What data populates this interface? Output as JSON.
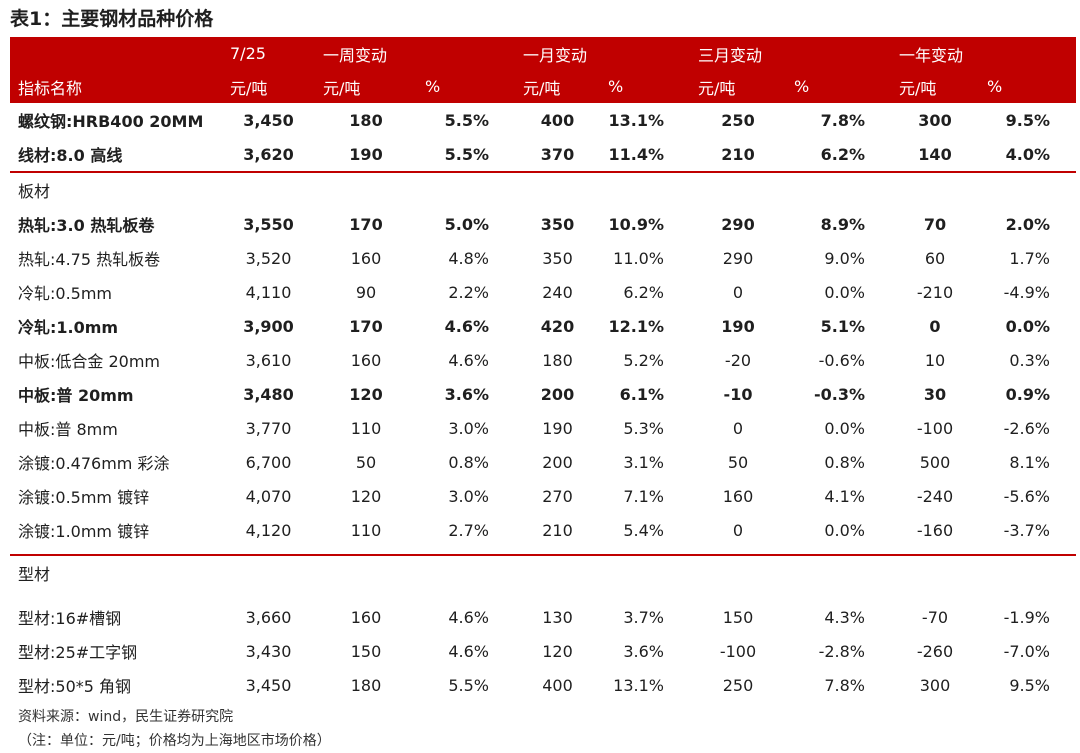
{
  "title": "表1：主要钢材品种价格",
  "header": {
    "row1": [
      "",
      "7/25",
      "一周变动",
      "",
      "一月变动",
      "",
      "三月变动",
      "",
      "一年变动",
      ""
    ],
    "row2": [
      "指标名称",
      "元/吨",
      "元/吨",
      "%",
      "元/吨",
      "%",
      "元/吨",
      "%",
      "元/吨",
      "%"
    ]
  },
  "rows_top": [
    {
      "name": "螺纹钢:HRB400 20MM",
      "bold": true,
      "v": [
        "3,450",
        "180",
        "5.5%",
        "400",
        "13.1%",
        "250",
        "7.8%",
        "300",
        "9.5%"
      ]
    },
    {
      "name": "线材:8.0 高线",
      "bold": true,
      "v": [
        "3,620",
        "190",
        "5.5%",
        "370",
        "11.4%",
        "210",
        "6.2%",
        "140",
        "4.0%"
      ]
    }
  ],
  "section_plate": "板材",
  "rows_plate": [
    {
      "name": "热轧:3.0 热轧板卷",
      "bold": true,
      "v": [
        "3,550",
        "170",
        "5.0%",
        "350",
        "10.9%",
        "290",
        "8.9%",
        "70",
        "2.0%"
      ]
    },
    {
      "name": "热轧:4.75 热轧板卷",
      "bold": false,
      "v": [
        "3,520",
        "160",
        "4.8%",
        "350",
        "11.0%",
        "290",
        "9.0%",
        "60",
        "1.7%"
      ]
    },
    {
      "name": "冷轧:0.5mm",
      "bold": false,
      "v": [
        "4,110",
        "90",
        "2.2%",
        "240",
        "6.2%",
        "0",
        "0.0%",
        "-210",
        "-4.9%"
      ]
    },
    {
      "name": "冷轧:1.0mm",
      "bold": true,
      "v": [
        "3,900",
        "170",
        "4.6%",
        "420",
        "12.1%",
        "190",
        "5.1%",
        "0",
        "0.0%"
      ]
    },
    {
      "name": "中板:低合金 20mm",
      "bold": false,
      "v": [
        "3,610",
        "160",
        "4.6%",
        "180",
        "5.2%",
        "-20",
        "-0.6%",
        "10",
        "0.3%"
      ]
    },
    {
      "name": "中板:普 20mm",
      "bold": true,
      "v": [
        "3,480",
        "120",
        "3.6%",
        "200",
        "6.1%",
        "-10",
        "-0.3%",
        "30",
        "0.9%"
      ]
    },
    {
      "name": "中板:普 8mm",
      "bold": false,
      "v": [
        "3,770",
        "110",
        "3.0%",
        "190",
        "5.3%",
        "0",
        "0.0%",
        "-100",
        "-2.6%"
      ]
    },
    {
      "name": "涂镀:0.476mm 彩涂",
      "bold": false,
      "v": [
        "6,700",
        "50",
        "0.8%",
        "200",
        "3.1%",
        "50",
        "0.8%",
        "500",
        "8.1%"
      ]
    },
    {
      "name": "涂镀:0.5mm 镀锌",
      "bold": false,
      "v": [
        "4,070",
        "120",
        "3.0%",
        "270",
        "7.1%",
        "160",
        "4.1%",
        "-240",
        "-5.6%"
      ]
    },
    {
      "name": "涂镀:1.0mm 镀锌",
      "bold": false,
      "v": [
        "4,120",
        "110",
        "2.7%",
        "210",
        "5.4%",
        "0",
        "0.0%",
        "-160",
        "-3.7%"
      ]
    }
  ],
  "section_shape": "型材",
  "rows_shape": [
    {
      "name": "型材:16#槽钢",
      "bold": false,
      "v": [
        "3,660",
        "160",
        "4.6%",
        "130",
        "3.7%",
        "150",
        "4.3%",
        "-70",
        "-1.9%"
      ]
    },
    {
      "name": "型材:25#工字钢",
      "bold": false,
      "v": [
        "3,430",
        "150",
        "4.6%",
        "120",
        "3.6%",
        "-100",
        "-2.8%",
        "-260",
        "-7.0%"
      ]
    },
    {
      "name": "型材:50*5 角钢",
      "bold": false,
      "v": [
        "3,450",
        "180",
        "5.5%",
        "400",
        "13.1%",
        "250",
        "7.8%",
        "300",
        "9.5%"
      ]
    }
  ],
  "notes": {
    "source": "资料来源：wind，民生证券研究院",
    "note": "（注：单位：元/吨；价格均为上海地区市场价格）"
  },
  "colors": {
    "accent": "#c00000",
    "text": "#1f1f1f"
  }
}
